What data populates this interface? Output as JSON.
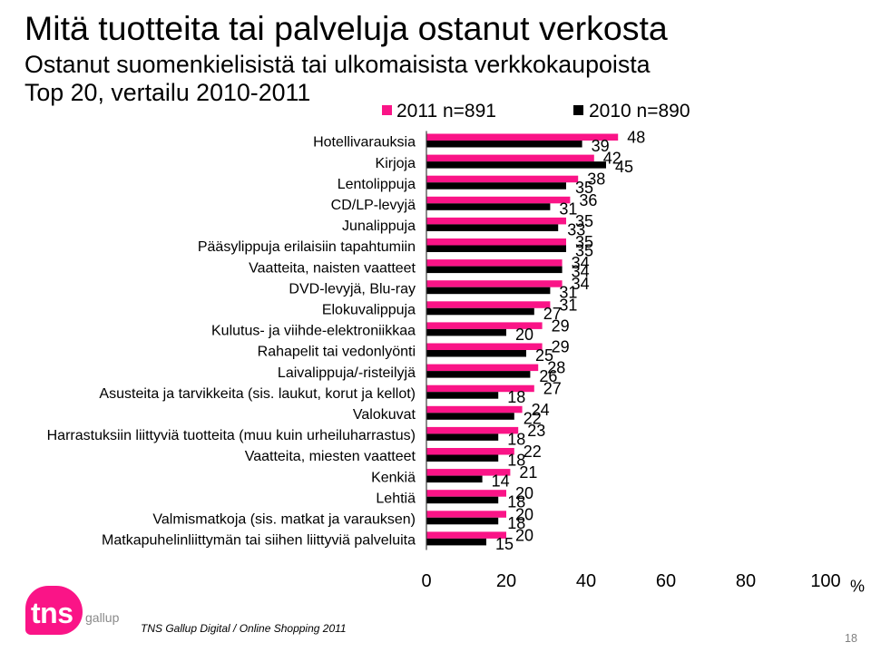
{
  "slide": {
    "title": "Mitä tuotteita tai palveluja ostanut verkosta",
    "subtitle": [
      "Ostanut suomenkielisistä tai ulkomaisista verkkokaupoista",
      "Top 20, vertailu 2010-2011"
    ],
    "source": "TNS Gallup Digital / Online Shopping 2011",
    "page_number": "18"
  },
  "logo": {
    "mark": "tns",
    "word": "gallup",
    "color": "#fa1487",
    "word_color": "#8a8a8a"
  },
  "chart_data": {
    "type": "bar",
    "orientation": "horizontal",
    "categories": [
      "Hotellivarauksia",
      "Kirjoja",
      "Lentolippuja",
      "CD/LP-levyjä",
      "Junalippuja",
      "Pääsylippuja erilaisiin tapahtumiin",
      "Vaatteita, naisten vaatteet",
      "DVD-levyjä, Blu-ray",
      "Elokuvalippuja",
      "Kulutus- ja viihde-elektroniikkaa",
      "Rahapelit tai vedonlyönti",
      "Laivalippuja/-risteilyjä",
      "Asusteita ja tarvikkeita (sis. laukut, korut ja kellot)",
      "Valokuvat",
      "Harrastuksiin liittyviä tuotteita (muu kuin urheiluharrastus)",
      "Vaatteita, miesten vaatteet",
      "Kenkiä",
      "Lehtiä",
      "Valmismatkoja (sis. matkat ja varauksen)",
      "Matkapuhelinliittymän tai siihen liittyviä palveluita"
    ],
    "series": [
      {
        "name": "2011 n=891",
        "color": "#fa1487",
        "values": [
          48,
          42,
          38,
          36,
          35,
          35,
          34,
          34,
          31,
          29,
          29,
          28,
          27,
          24,
          23,
          22,
          21,
          20,
          20,
          20
        ]
      },
      {
        "name": "2010 n=890",
        "color": "#000000",
        "values": [
          39,
          45,
          35,
          31,
          33,
          35,
          34,
          31,
          27,
          20,
          25,
          26,
          18,
          22,
          18,
          18,
          14,
          18,
          18,
          15
        ]
      }
    ],
    "xlim": [
      0,
      100
    ],
    "xticks": [
      0,
      20,
      40,
      60,
      80,
      100
    ],
    "x_unit": "%",
    "legend_position": "top",
    "grid": false
  }
}
